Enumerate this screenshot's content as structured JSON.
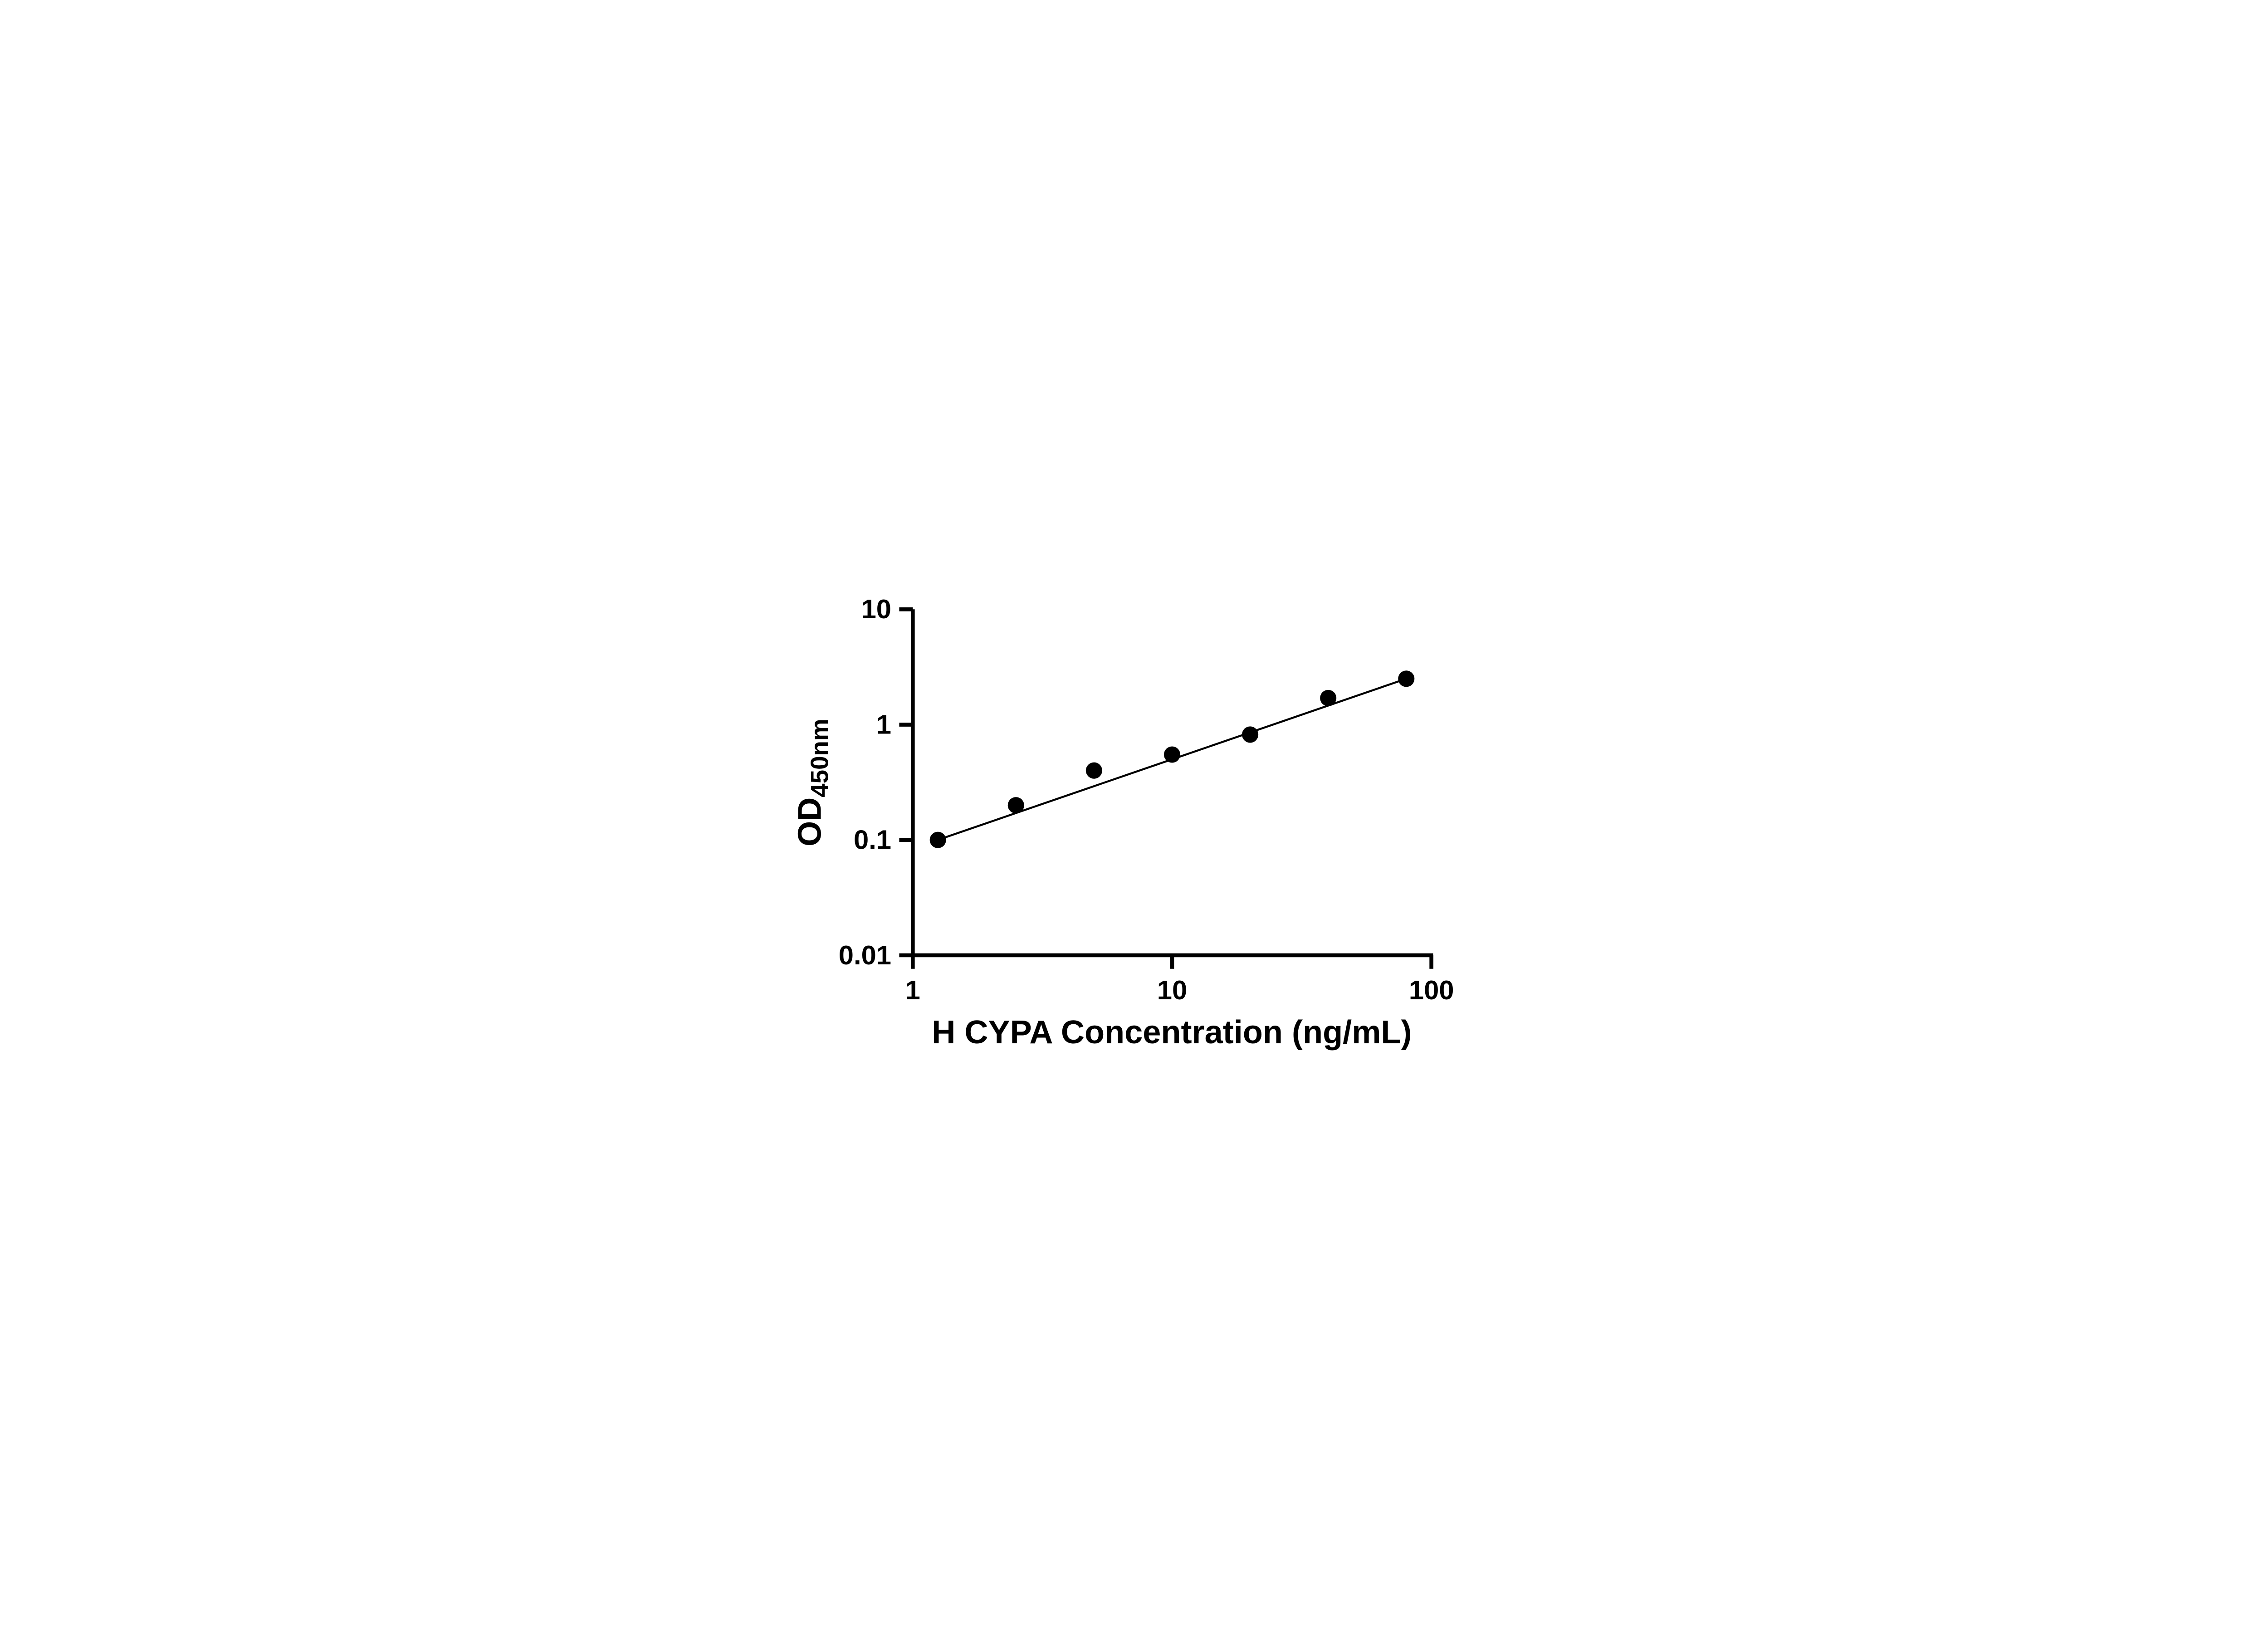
{
  "page": {
    "background": "#ffffff"
  },
  "chart_data": {
    "type": "scatter",
    "title": "",
    "xlabel": "H CYPA Concentration (ng/mL)",
    "ylabel_main": "OD",
    "ylabel_sub": "450nm",
    "x_scale": "log",
    "y_scale": "log",
    "xlim": [
      1,
      100
    ],
    "ylim": [
      0.01,
      10
    ],
    "grid": false,
    "legend_position": "none",
    "x_ticks": [
      {
        "value": 1,
        "label": "1"
      },
      {
        "value": 10,
        "label": "10"
      },
      {
        "value": 100,
        "label": "100"
      }
    ],
    "y_ticks": [
      {
        "value": 0.01,
        "label": "0.01"
      },
      {
        "value": 0.1,
        "label": "0.1"
      },
      {
        "value": 1,
        "label": "1"
      },
      {
        "value": 10,
        "label": "10"
      }
    ],
    "points": [
      {
        "x": 1.25,
        "y": 0.1
      },
      {
        "x": 2.5,
        "y": 0.2
      },
      {
        "x": 5,
        "y": 0.4
      },
      {
        "x": 10,
        "y": 0.55
      },
      {
        "x": 20,
        "y": 0.82
      },
      {
        "x": 40,
        "y": 1.7
      },
      {
        "x": 80,
        "y": 2.5
      }
    ],
    "trendline": {
      "x1": 1.2,
      "y1": 0.097,
      "x2": 82,
      "y2": 2.55
    },
    "colors": {
      "axis": "#000000",
      "point": "#000000",
      "line": "#000000"
    }
  }
}
